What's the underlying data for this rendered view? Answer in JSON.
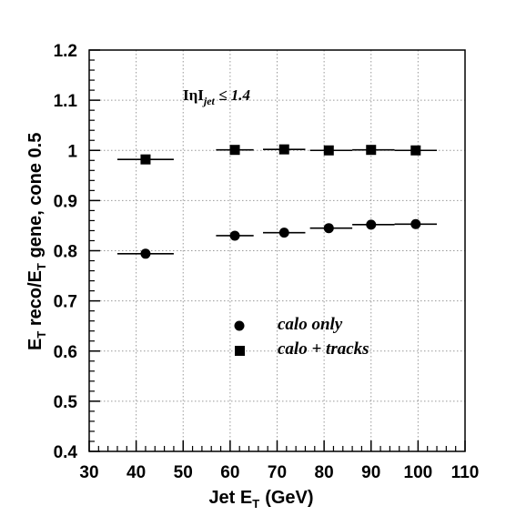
{
  "chart_data": {
    "type": "scatter",
    "title": "",
    "xlabel": "Jet E",
    "xlabel_sub": "T",
    "xlabel_unit": "(GeV)",
    "ylabel_parts": [
      "E",
      "T",
      " reco/E",
      "T",
      " gene, cone 0.5"
    ],
    "xlim": [
      30,
      110
    ],
    "ylim": [
      0.4,
      1.2
    ],
    "x_ticks": [
      30,
      40,
      50,
      60,
      70,
      80,
      90,
      100,
      110
    ],
    "y_ticks": [
      0.4,
      0.5,
      0.6,
      0.7,
      0.8,
      0.9,
      1,
      1.1,
      1.2
    ],
    "x_tick_labels": [
      "30",
      "40",
      "50",
      "60",
      "70",
      "80",
      "90",
      "100",
      "110"
    ],
    "y_tick_labels": [
      "0.4",
      "0.5",
      "0.6",
      "0.7",
      "0.8",
      "0.9",
      "1",
      "1.1",
      "1.2"
    ],
    "grid": true,
    "annotation": {
      "prefix": "IηI",
      "subscript": "jet",
      "suffix": " ≤ 1.4"
    },
    "series": [
      {
        "name": "calo only",
        "marker": "circle",
        "color": "#000000",
        "points": [
          {
            "x": 42,
            "y": 0.794,
            "xerr": [
              36,
              48
            ]
          },
          {
            "x": 61,
            "y": 0.83,
            "xerr": [
              57,
              65
            ]
          },
          {
            "x": 71.5,
            "y": 0.836,
            "xerr": [
              67,
              76
            ]
          },
          {
            "x": 81,
            "y": 0.845,
            "xerr": [
              77,
              86
            ]
          },
          {
            "x": 90,
            "y": 0.852,
            "xerr": [
              86,
              95
            ]
          },
          {
            "x": 99.5,
            "y": 0.853,
            "xerr": [
              95,
              104
            ]
          }
        ]
      },
      {
        "name": "calo + tracks",
        "marker": "square",
        "color": "#000000",
        "points": [
          {
            "x": 42,
            "y": 0.982,
            "xerr": [
              36,
              48
            ]
          },
          {
            "x": 61,
            "y": 1.001,
            "xerr": [
              57,
              65
            ]
          },
          {
            "x": 71.5,
            "y": 1.002,
            "xerr": [
              67,
              76
            ]
          },
          {
            "x": 81,
            "y": 1.0,
            "xerr": [
              77,
              86
            ]
          },
          {
            "x": 90,
            "y": 1.001,
            "xerr": [
              86,
              95
            ]
          },
          {
            "x": 99.5,
            "y": 1.0,
            "xerr": [
              95,
              104
            ]
          }
        ]
      }
    ],
    "legend": {
      "placement": "center",
      "entries": [
        "calo only",
        "calo + tracks"
      ]
    }
  }
}
